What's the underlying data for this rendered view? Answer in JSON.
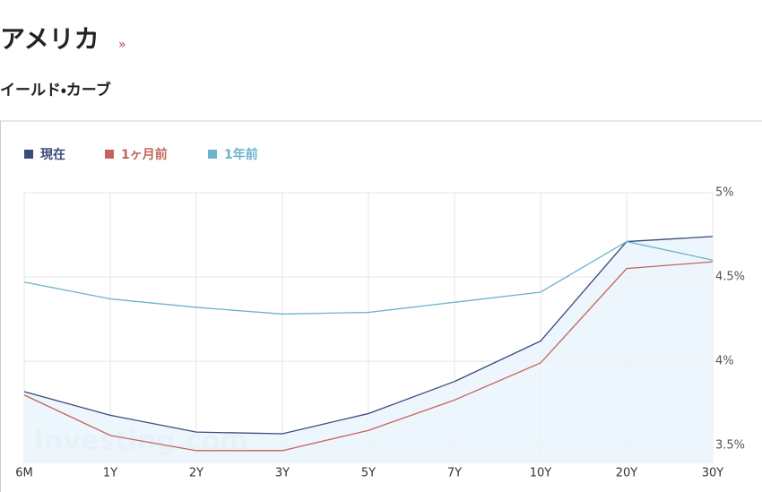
{
  "header": {
    "title": "アメリカ",
    "link": "»"
  },
  "chart_data": {
    "type": "line",
    "title": "イールド・カーブ",
    "watermark": "Investing.com",
    "categories": [
      "6M",
      "1Y",
      "2Y",
      "3Y",
      "5Y",
      "7Y",
      "10Y",
      "20Y",
      "30Y"
    ],
    "series": [
      {
        "name": "現在",
        "color": "#3b4a7c",
        "fill": true,
        "values": [
          3.82,
          3.68,
          3.58,
          3.57,
          3.69,
          3.88,
          4.12,
          4.71,
          4.74
        ]
      },
      {
        "name": "1ヶ月前",
        "color": "#c3655c",
        "values": [
          3.8,
          3.56,
          3.47,
          3.47,
          3.59,
          3.77,
          3.99,
          4.55,
          4.59
        ]
      },
      {
        "name": "1年前",
        "color": "#6cb2cd",
        "values": [
          4.47,
          4.37,
          4.32,
          4.28,
          4.29,
          4.35,
          4.41,
          4.71,
          4.6
        ]
      }
    ],
    "ylim": [
      3.4,
      5
    ],
    "yticks": [
      {
        "value": 3.5,
        "label": "3.5%"
      },
      {
        "value": 4,
        "label": "4%"
      },
      {
        "value": 4.5,
        "label": "4.5%"
      },
      {
        "value": 5,
        "label": "5%"
      }
    ],
    "grid": true,
    "legend": "top-left"
  }
}
